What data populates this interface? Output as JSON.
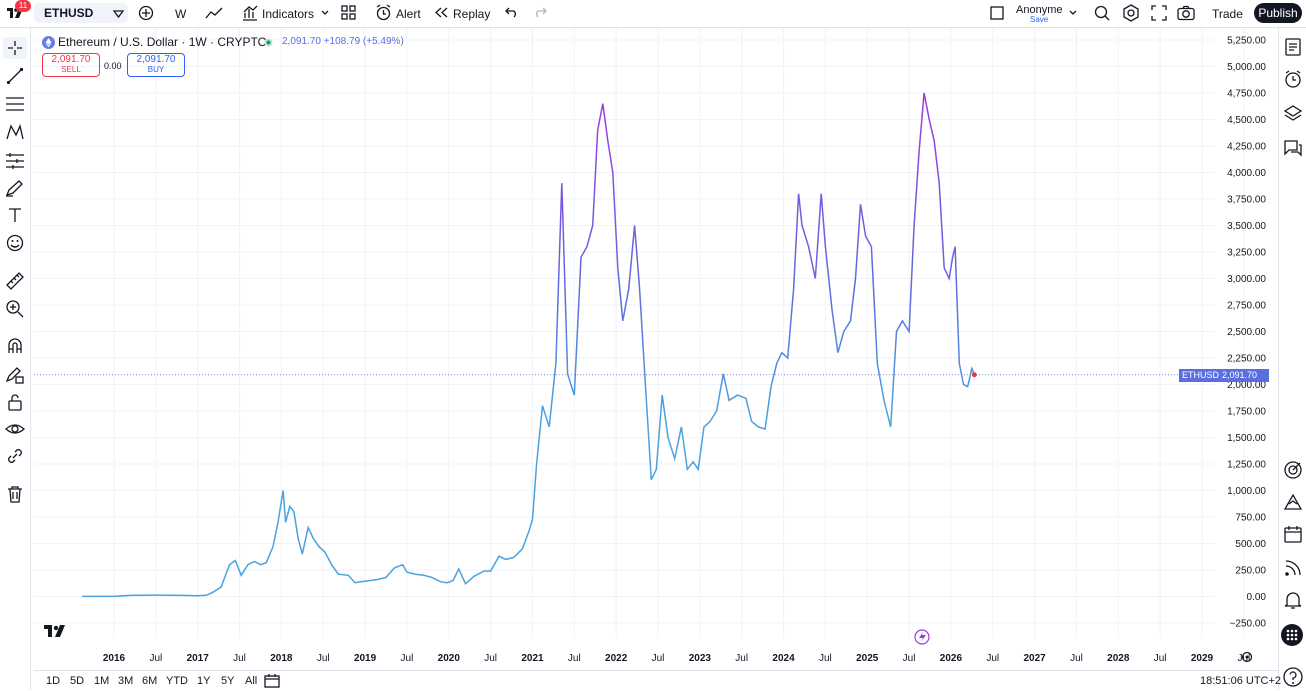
{
  "topbar": {
    "notification_count": "11",
    "symbol": "ETHUSD",
    "interval": "W",
    "indicators_label": "Indicators",
    "alert_label": "Alert",
    "replay_label": "Replay",
    "account_name": "Anonyme",
    "account_save": "Save",
    "trade_label": "Trade",
    "publish_label": "Publish"
  },
  "legend": {
    "title": "Ethereum / U.S. Dollar · 1W · CRYPTO",
    "price": "2,091.70",
    "change": "+108.79 (+5.49%)",
    "sell_price": "2,091.70",
    "sell_label": "SELL",
    "spread": "0.00",
    "buy_price": "2,091.70",
    "buy_label": "BUY"
  },
  "price_tag": {
    "symbol": "ETHUSD",
    "value": "2,091.70"
  },
  "bottom": {
    "ranges": [
      "1D",
      "5D",
      "1M",
      "3M",
      "6M",
      "YTD",
      "1Y",
      "5Y",
      "All"
    ],
    "clock": "18:51:06 UTC+2"
  },
  "colors": {
    "line_low": "#4aa3df",
    "line_mid": "#5b6ee1",
    "line_high": "#9c3cdb",
    "price_tag_bg": "#5b6ee1",
    "sell": "#f23645",
    "buy": "#2962ff"
  },
  "chart_data": {
    "type": "line",
    "title": "Ethereum / U.S. Dollar · 1W · CRYPTO",
    "ylim": [
      -250,
      5250
    ],
    "y_ticks": [
      "5,250.00",
      "5,000.00",
      "4,750.00",
      "4,500.00",
      "4,250.00",
      "4,000.00",
      "3,750.00",
      "3,500.00",
      "3,250.00",
      "3,000.00",
      "2,750.00",
      "2,500.00",
      "2,250.00",
      "2,000.00",
      "1,750.00",
      "1,500.00",
      "1,250.00",
      "1,000.00",
      "750.00",
      "500.00",
      "250.00",
      "0.00",
      "−250.00"
    ],
    "x_ticks": [
      "2016",
      "Jul",
      "2017",
      "Jul",
      "2018",
      "Jul",
      "2019",
      "Jul",
      "2020",
      "Jul",
      "2021",
      "Jul",
      "2022",
      "Jul",
      "2023",
      "Jul",
      "2024",
      "Jul",
      "2025",
      "Jul",
      "2026",
      "Jul",
      "2027",
      "Jul",
      "2028",
      "Jul",
      "2029",
      "Jul"
    ],
    "x_tick_years": [
      2016,
      2016.5,
      2017,
      2017.5,
      2018,
      2018.5,
      2019,
      2019.5,
      2020,
      2020.5,
      2021,
      2021.5,
      2022,
      2022.5,
      2023,
      2023.5,
      2024,
      2024.5,
      2025,
      2025.5,
      2026,
      2026.5,
      2027,
      2027.5,
      2028,
      2028.5,
      2029,
      2029.5
    ],
    "xlim": [
      2015.6,
      2030.5
    ],
    "grid": true,
    "series": [
      {
        "name": "ETHUSD",
        "points": [
          [
            2015.62,
            1
          ],
          [
            2016.0,
            1
          ],
          [
            2016.2,
            10
          ],
          [
            2016.45,
            13
          ],
          [
            2016.7,
            12
          ],
          [
            2016.9,
            9
          ],
          [
            2017.0,
            8
          ],
          [
            2017.1,
            11
          ],
          [
            2017.18,
            40
          ],
          [
            2017.28,
            90
          ],
          [
            2017.38,
            300
          ],
          [
            2017.45,
            340
          ],
          [
            2017.52,
            200
          ],
          [
            2017.6,
            300
          ],
          [
            2017.68,
            330
          ],
          [
            2017.75,
            300
          ],
          [
            2017.82,
            320
          ],
          [
            2017.9,
            470
          ],
          [
            2017.96,
            700
          ],
          [
            2018.02,
            1000
          ],
          [
            2018.05,
            700
          ],
          [
            2018.1,
            850
          ],
          [
            2018.15,
            800
          ],
          [
            2018.2,
            550
          ],
          [
            2018.25,
            400
          ],
          [
            2018.32,
            650
          ],
          [
            2018.38,
            550
          ],
          [
            2018.45,
            470
          ],
          [
            2018.52,
            420
          ],
          [
            2018.6,
            300
          ],
          [
            2018.68,
            210
          ],
          [
            2018.8,
            200
          ],
          [
            2018.88,
            130
          ],
          [
            2018.95,
            140
          ],
          [
            2019.05,
            150
          ],
          [
            2019.15,
            160
          ],
          [
            2019.25,
            180
          ],
          [
            2019.35,
            270
          ],
          [
            2019.45,
            300
          ],
          [
            2019.5,
            230
          ],
          [
            2019.6,
            210
          ],
          [
            2019.7,
            200
          ],
          [
            2019.8,
            180
          ],
          [
            2019.9,
            140
          ],
          [
            2019.98,
            130
          ],
          [
            2020.05,
            150
          ],
          [
            2020.12,
            260
          ],
          [
            2020.2,
            120
          ],
          [
            2020.3,
            190
          ],
          [
            2020.42,
            240
          ],
          [
            2020.5,
            240
          ],
          [
            2020.6,
            380
          ],
          [
            2020.68,
            350
          ],
          [
            2020.78,
            370
          ],
          [
            2020.88,
            450
          ],
          [
            2020.96,
            620
          ],
          [
            2021.0,
            730
          ],
          [
            2021.05,
            1250
          ],
          [
            2021.12,
            1800
          ],
          [
            2021.2,
            1600
          ],
          [
            2021.28,
            2200
          ],
          [
            2021.35,
            3900
          ],
          [
            2021.42,
            2100
          ],
          [
            2021.5,
            1900
          ],
          [
            2021.58,
            3200
          ],
          [
            2021.65,
            3300
          ],
          [
            2021.72,
            3500
          ],
          [
            2021.78,
            4400
          ],
          [
            2021.84,
            4650
          ],
          [
            2021.9,
            4300
          ],
          [
            2021.96,
            4000
          ],
          [
            2022.02,
            3100
          ],
          [
            2022.08,
            2600
          ],
          [
            2022.15,
            2900
          ],
          [
            2022.22,
            3500
          ],
          [
            2022.28,
            2900
          ],
          [
            2022.35,
            2000
          ],
          [
            2022.42,
            1100
          ],
          [
            2022.48,
            1200
          ],
          [
            2022.55,
            1900
          ],
          [
            2022.62,
            1500
          ],
          [
            2022.7,
            1300
          ],
          [
            2022.78,
            1600
          ],
          [
            2022.85,
            1200
          ],
          [
            2022.92,
            1270
          ],
          [
            2022.98,
            1200
          ],
          [
            2023.05,
            1600
          ],
          [
            2023.12,
            1650
          ],
          [
            2023.2,
            1750
          ],
          [
            2023.28,
            2100
          ],
          [
            2023.35,
            1850
          ],
          [
            2023.45,
            1900
          ],
          [
            2023.55,
            1870
          ],
          [
            2023.62,
            1650
          ],
          [
            2023.7,
            1600
          ],
          [
            2023.78,
            1580
          ],
          [
            2023.85,
            1980
          ],
          [
            2023.92,
            2200
          ],
          [
            2023.98,
            2300
          ],
          [
            2024.05,
            2250
          ],
          [
            2024.12,
            2900
          ],
          [
            2024.18,
            3800
          ],
          [
            2024.22,
            3500
          ],
          [
            2024.3,
            3300
          ],
          [
            2024.38,
            3000
          ],
          [
            2024.45,
            3800
          ],
          [
            2024.5,
            3300
          ],
          [
            2024.58,
            2700
          ],
          [
            2024.65,
            2300
          ],
          [
            2024.72,
            2500
          ],
          [
            2024.8,
            2600
          ],
          [
            2024.86,
            3000
          ],
          [
            2024.92,
            3700
          ],
          [
            2024.98,
            3400
          ],
          [
            2025.05,
            3300
          ],
          [
            2025.12,
            2200
          ],
          [
            2025.2,
            1850
          ],
          [
            2025.28,
            1600
          ],
          [
            2025.35,
            2500
          ],
          [
            2025.42,
            2600
          ],
          [
            2025.5,
            2500
          ],
          [
            2025.56,
            3500
          ],
          [
            2025.62,
            4200
          ],
          [
            2025.68,
            4750
          ],
          [
            2025.74,
            4500
          ],
          [
            2025.8,
            4300
          ],
          [
            2025.86,
            3900
          ],
          [
            2025.92,
            3100
          ],
          [
            2025.98,
            3000
          ],
          [
            2026.02,
            3200
          ],
          [
            2026.05,
            3300
          ],
          [
            2026.1,
            2200
          ],
          [
            2026.15,
            2000
          ],
          [
            2026.2,
            1980
          ],
          [
            2026.25,
            2150
          ],
          [
            2026.28,
            2091.7
          ]
        ]
      }
    ]
  }
}
